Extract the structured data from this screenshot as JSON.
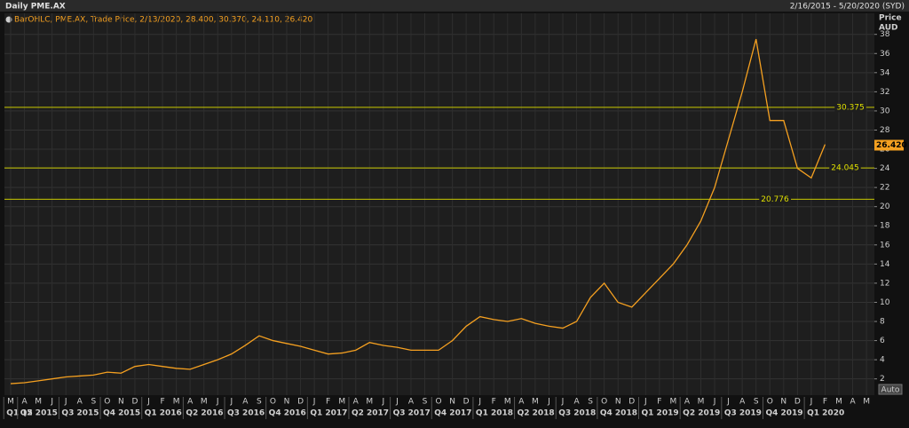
{
  "chart_data": {
    "type": "line",
    "title": "Daily PME.AX",
    "date_range": "2/16/2015 - 5/20/2020 (SYD)",
    "legend_text": "BarOHLC, PME.AX, Trade Price, 2/13/2020, 28.400, 30.370, 24.110, 26.420",
    "y_label": [
      "Price",
      "AUD"
    ],
    "auto_button": "Auto",
    "categories": [
      "M",
      "A",
      "M",
      "J",
      "J",
      "A",
      "S",
      "O",
      "N",
      "D",
      "J",
      "F",
      "M",
      "A",
      "M",
      "J",
      "J",
      "A",
      "S",
      "O",
      "N",
      "D",
      "J",
      "F",
      "M",
      "A",
      "M",
      "J",
      "J",
      "A",
      "S",
      "O",
      "N",
      "D",
      "J",
      "F",
      "M",
      "A",
      "M",
      "J",
      "J",
      "A",
      "S",
      "O",
      "N",
      "D",
      "J",
      "F",
      "M",
      "A",
      "M",
      "J",
      "J",
      "A",
      "S",
      "O",
      "N",
      "D",
      "J",
      "F",
      "M",
      "A",
      "M"
    ],
    "quarters": [
      "Q1 15",
      "Q2 2015",
      "Q3 2015",
      "Q4 2015",
      "Q1 2016",
      "Q2 2016",
      "Q3 2016",
      "Q4 2016",
      "Q1 2017",
      "Q2 2017",
      "Q3 2017",
      "Q4 2017",
      "Q1 2018",
      "Q2 2018",
      "Q3 2018",
      "Q4 2018",
      "Q1 2019",
      "Q2 2019",
      "Q3 2019",
      "Q4 2019",
      "Q1 2020"
    ],
    "series": [
      {
        "name": "PME.AX",
        "color": "#f5a020",
        "values": [
          1.5,
          1.6,
          1.8,
          2.0,
          2.2,
          2.3,
          2.4,
          2.7,
          2.6,
          3.3,
          3.5,
          3.3,
          3.1,
          3.0,
          3.5,
          4.0,
          4.6,
          5.5,
          6.5,
          6.0,
          5.7,
          5.4,
          5.0,
          4.6,
          4.7,
          5.0,
          5.8,
          5.5,
          5.3,
          5.0,
          5.0,
          5.0,
          6.0,
          7.5,
          8.5,
          8.2,
          8.0,
          8.3,
          7.8,
          7.5,
          7.3,
          8.0,
          10.5,
          12.0,
          10.0,
          9.5,
          11.0,
          12.5,
          14.0,
          16.0,
          18.5,
          22.0,
          27.0,
          32.0,
          37.5,
          29.0,
          29.0,
          24.0,
          23.0,
          26.5,
          null,
          null,
          null
        ]
      }
    ],
    "ylim": [
      0.3,
      40.2
    ],
    "yticks": [
      2,
      4,
      6,
      8,
      10,
      12,
      14,
      16,
      18,
      20,
      22,
      24,
      26,
      28,
      30,
      32,
      34,
      36,
      38
    ],
    "levels": [
      30.375,
      24.045,
      20.776
    ],
    "last_price": {
      "value": 26.42,
      "label": "26.420"
    },
    "grid": true
  }
}
